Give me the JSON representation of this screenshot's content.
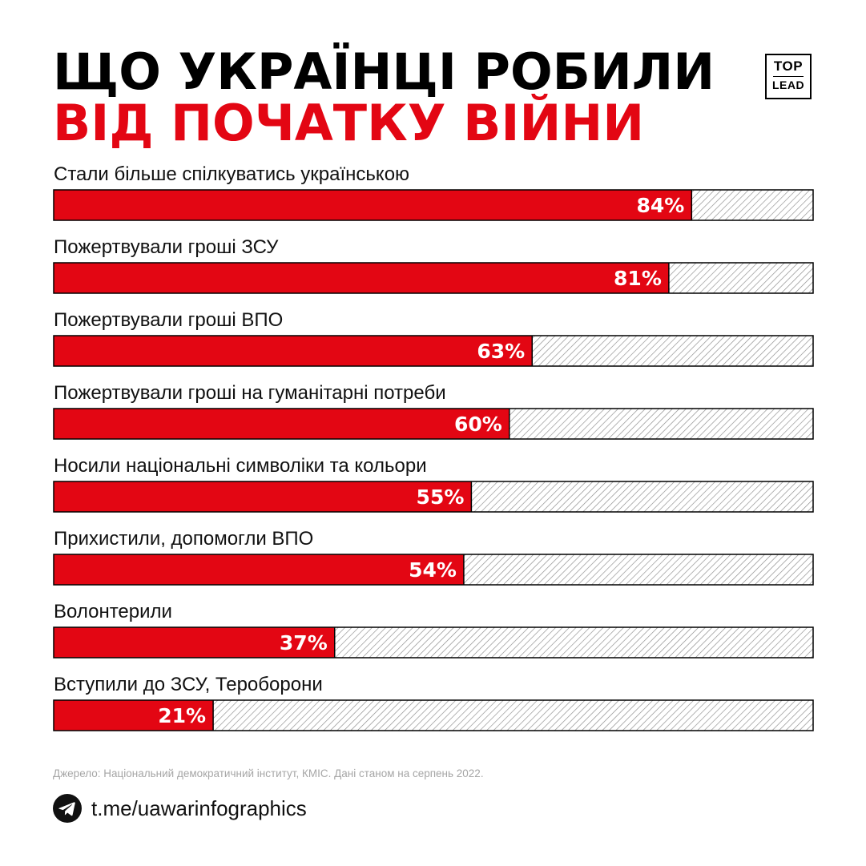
{
  "header": {
    "title_line1": "ЩО УКРАЇНЦІ РОБИЛИ",
    "title_line2": "ВІД ПОЧАТКУ ВІЙНИ",
    "title_line1_color": "#000000",
    "title_line2_color": "#e30613"
  },
  "logo": {
    "top": "TOP",
    "bottom": "LEAD"
  },
  "chart_data": {
    "type": "bar",
    "orientation": "horizontal",
    "categories": [
      "Стали більше спілкуватись українською",
      "Пожертвували гроші ЗСУ",
      "Пожертвували гроші ВПО",
      "Пожертвували гроші на гуманітарні потреби",
      "Носили національні символіки та кольори",
      "Прихистили, допомогли ВПО",
      "Волонтерили",
      "Вступили до ЗСУ, Тероборони"
    ],
    "values": [
      84,
      81,
      63,
      60,
      55,
      54,
      37,
      21
    ],
    "value_labels": [
      "84%",
      "81%",
      "63%",
      "60%",
      "55%",
      "54%",
      "37%",
      "21%"
    ],
    "unit": "%",
    "xlim": [
      0,
      100
    ],
    "bar_color": "#e30613",
    "remainder_fill": "hatched",
    "grid": false,
    "legend": "none"
  },
  "footer": {
    "source": "Джерело: Національний демократичний інститут, КМІС. Дані станом на серпень 2022.",
    "link": "t.me/uawarinfographics",
    "icon": "telegram-icon"
  }
}
